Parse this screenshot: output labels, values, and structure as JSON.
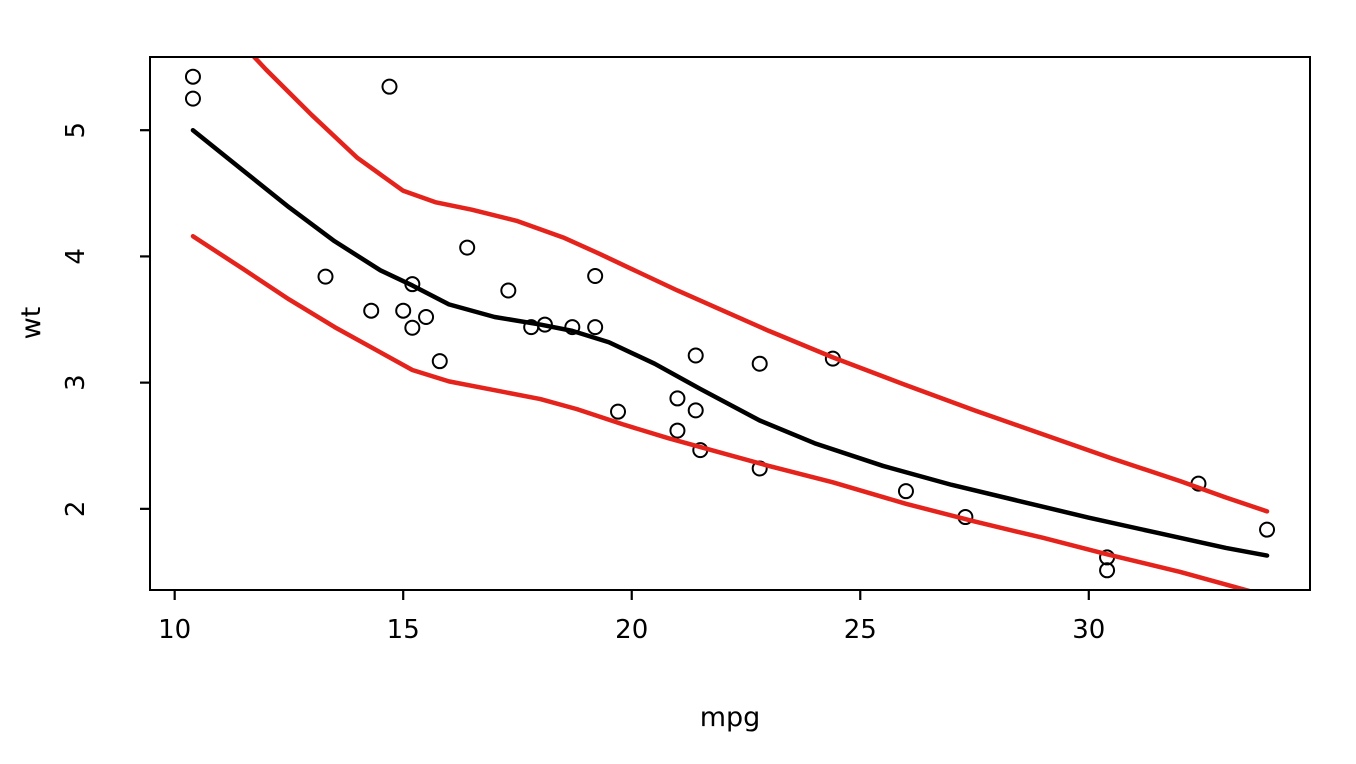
{
  "figure": {
    "background_color": "#ffffff",
    "plot_border_color": "#000000"
  },
  "chart_data": {
    "type": "scatter",
    "title": "",
    "xlabel": "mpg",
    "ylabel": "wt",
    "xlim": [
      9.46,
      34.84
    ],
    "ylim": [
      1.357,
      5.58
    ],
    "x_ticks": [
      10,
      15,
      20,
      25,
      30
    ],
    "y_ticks": [
      2,
      3,
      4,
      5
    ],
    "grid": false,
    "legend": "none",
    "point_style": {
      "shape": "open-circle",
      "radius": 7,
      "color": "#000000",
      "stroke_width": 2
    },
    "points": [
      [
        21.0,
        2.62
      ],
      [
        21.0,
        2.875
      ],
      [
        22.8,
        2.32
      ],
      [
        21.4,
        3.215
      ],
      [
        18.7,
        3.44
      ],
      [
        18.1,
        3.46
      ],
      [
        14.3,
        3.57
      ],
      [
        24.4,
        3.19
      ],
      [
        22.8,
        3.15
      ],
      [
        19.2,
        3.44
      ],
      [
        17.8,
        3.44
      ],
      [
        16.4,
        4.07
      ],
      [
        17.3,
        3.73
      ],
      [
        15.2,
        3.78
      ],
      [
        10.4,
        5.25
      ],
      [
        10.4,
        5.424
      ],
      [
        14.7,
        5.345
      ],
      [
        32.4,
        2.2
      ],
      [
        30.4,
        1.615
      ],
      [
        33.9,
        1.835
      ],
      [
        21.5,
        2.465
      ],
      [
        15.5,
        3.52
      ],
      [
        15.2,
        3.435
      ],
      [
        13.3,
        3.84
      ],
      [
        19.2,
        3.845
      ],
      [
        27.3,
        1.935
      ],
      [
        26.0,
        2.14
      ],
      [
        15.8,
        3.17
      ],
      [
        19.7,
        2.77
      ],
      [
        15.0,
        3.57
      ],
      [
        30.4,
        1.513
      ],
      [
        21.4,
        2.78
      ]
    ],
    "series": [
      {
        "name": "smooth-fit-line",
        "color": "#000000",
        "width": 4.5,
        "x": [
          10.4,
          11.5,
          12.5,
          13.5,
          14.5,
          15.2,
          16.0,
          17.0,
          18.0,
          18.7,
          19.5,
          20.5,
          21.5,
          22.8,
          24.0,
          25.5,
          27.0,
          28.5,
          30.0,
          31.5,
          33.0,
          33.9
        ],
        "y": [
          5.0,
          4.68,
          4.39,
          4.12,
          3.89,
          3.77,
          3.62,
          3.52,
          3.46,
          3.41,
          3.32,
          3.15,
          2.95,
          2.7,
          2.52,
          2.34,
          2.19,
          2.06,
          1.93,
          1.81,
          1.69,
          1.63
        ]
      },
      {
        "name": "upper-band-line",
        "color": "#e4241c",
        "width": 4.5,
        "x": [
          11.3,
          12.0,
          13.0,
          14.0,
          15.0,
          15.7,
          16.5,
          17.5,
          18.5,
          19.3,
          20.0,
          21.0,
          22.0,
          23.0,
          24.4,
          26.0,
          27.5,
          29.0,
          30.5,
          32.0,
          33.0,
          33.9
        ],
        "y": [
          5.75,
          5.48,
          5.12,
          4.78,
          4.52,
          4.43,
          4.37,
          4.28,
          4.15,
          4.02,
          3.9,
          3.73,
          3.57,
          3.41,
          3.2,
          2.98,
          2.78,
          2.59,
          2.4,
          2.22,
          2.09,
          1.98
        ]
      },
      {
        "name": "lower-band-line",
        "color": "#e4241c",
        "width": 4.5,
        "x": [
          10.4,
          11.5,
          12.5,
          13.5,
          14.5,
          15.2,
          16.0,
          17.0,
          18.0,
          18.8,
          19.8,
          20.8,
          21.8,
          23.0,
          24.4,
          26.0,
          27.5,
          29.0,
          30.4,
          32.0,
          33.2,
          33.9
        ],
        "y": [
          4.16,
          3.9,
          3.66,
          3.44,
          3.24,
          3.1,
          3.01,
          2.94,
          2.87,
          2.79,
          2.67,
          2.56,
          2.46,
          2.34,
          2.21,
          2.04,
          1.9,
          1.77,
          1.64,
          1.5,
          1.38,
          1.31
        ]
      }
    ]
  }
}
